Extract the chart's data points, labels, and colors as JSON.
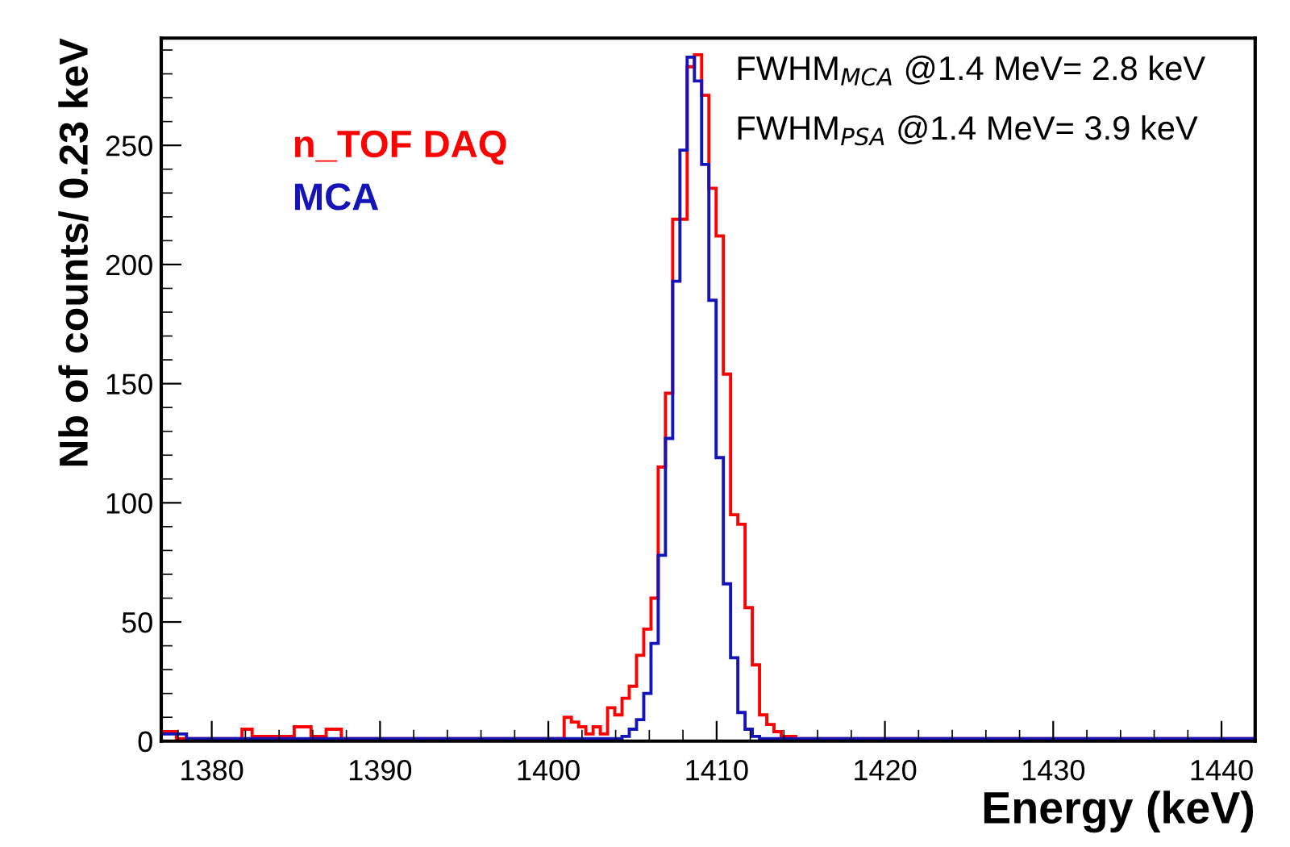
{
  "chart_data": {
    "type": "histogram",
    "xlabel": "Energy (keV)",
    "ylabel": "Nb of counts/ 0.23 keV",
    "xlim": [
      1377,
      1442
    ],
    "ylim": [
      0,
      295
    ],
    "xticks": [
      1380,
      1390,
      1400,
      1410,
      1420,
      1430,
      1440
    ],
    "yticks": [
      0,
      50,
      100,
      150,
      200,
      250
    ],
    "grid": false,
    "annotations": [
      "FWHM$_{MCA}$ @1.4 MeV= 2.8 keV",
      "FWHM$_{PSA}$ @1.4 MeV= 3.9 keV"
    ],
    "bins": [
      1377,
      1377.9,
      1378.5,
      1381.8,
      1382.4,
      1384.9,
      1385.9,
      1386.8,
      1387.7,
      1400.94,
      1401.37,
      1401.8,
      1402.23,
      1402.66,
      1403.09,
      1403.52,
      1403.95,
      1404.38,
      1404.81,
      1405.24,
      1405.67,
      1406.1,
      1406.53,
      1406.96,
      1407.39,
      1407.82,
      1408.25,
      1408.68,
      1409.11,
      1409.54,
      1409.97,
      1410.4,
      1410.83,
      1411.26,
      1411.69,
      1412.12,
      1412.55,
      1412.98,
      1413.41,
      1413.84,
      1414.7,
      1442
    ],
    "series": [
      {
        "name": "n_TOF DAQ",
        "color": "#ff0000",
        "values": [
          4,
          1,
          1,
          5,
          2,
          6,
          2,
          5,
          1,
          10,
          8,
          6,
          3,
          6,
          3,
          14,
          11,
          18,
          23,
          36,
          47,
          60,
          115,
          146,
          219,
          219,
          283,
          288,
          271,
          232,
          212,
          154,
          95,
          91,
          56,
          32,
          11,
          7,
          4,
          2,
          1
        ]
      },
      {
        "name": "MCA",
        "color": "#1414b8",
        "values": [
          3,
          3,
          1,
          1,
          1,
          1,
          1,
          1,
          1,
          1,
          1,
          1,
          1,
          1,
          1,
          1,
          1,
          2,
          5,
          9,
          20,
          41,
          78,
          127,
          193,
          248,
          287,
          277,
          242,
          185,
          119,
          66,
          35,
          12,
          5,
          2,
          1,
          1,
          1,
          1,
          1
        ]
      }
    ]
  }
}
